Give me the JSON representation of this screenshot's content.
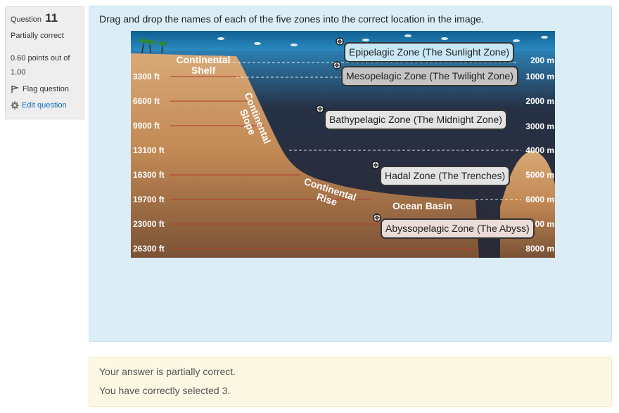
{
  "info": {
    "question_label": "Question",
    "question_number": "11",
    "state": "Partially correct",
    "grade_line1": "0.60 points out of",
    "grade_line2": "1.00",
    "flag_label": "Flag question",
    "edit_label": "Edit question"
  },
  "question": {
    "text": "Drag and drop the names of each of the five zones into the correct location in the image."
  },
  "diagram": {
    "depths_ft": [
      "3300 ft",
      "6600 ft",
      "9900 ft",
      "13100 ft",
      "16300 ft",
      "19700 ft",
      "23000 ft",
      "26300 ft"
    ],
    "depths_m": [
      "200 m",
      "1000 m",
      "2000 m",
      "3000 m",
      "4000 m",
      "5000 m",
      "6000 m",
      "7000 m",
      "8000 m"
    ],
    "labels": {
      "shelf_1": "Continental",
      "shelf_2": "Shelf",
      "slope_1": "Continental",
      "slope_2": "Slope",
      "rise_1": "Continental",
      "rise_2": "Rise",
      "basin": "Ocean Basin"
    }
  },
  "drag_items": {
    "epipelagic": "Epipelagic Zone (The Sunlight Zone)",
    "mesopelagic": "Mesopelagic Zone (The Twilight Zone)",
    "bathypelagic": "Bathypelagic Zone (The Midnight Zone)",
    "hadal": "Hadal Zone (The Trenches)",
    "abyssopelagic": "Abyssopelagic Zone (The Abyss)"
  },
  "outcome": {
    "line1": "Your answer is partially correct.",
    "line2": "You have correctly selected 3."
  },
  "colors": {
    "info_bg": "#eeeeee",
    "formulation_bg": "#dbeef7",
    "outcome_bg": "#fcf8e3",
    "link": "#0f6cbf",
    "deep_water": "#2a2935",
    "sediment": "#c18a55"
  }
}
